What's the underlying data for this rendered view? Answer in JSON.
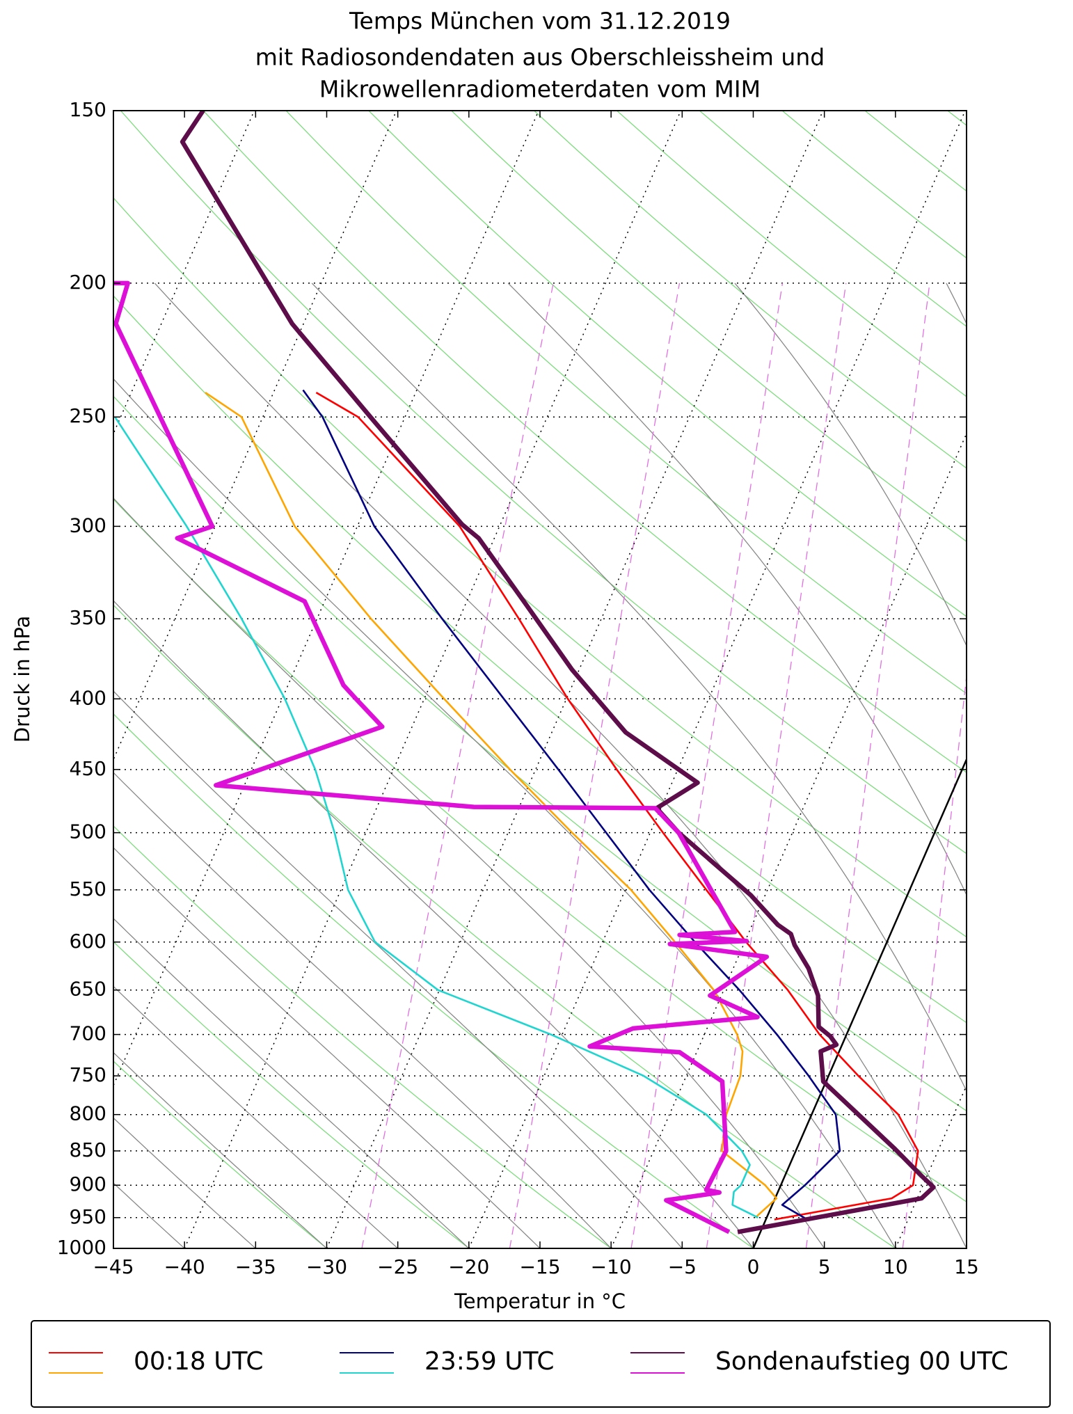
{
  "chart_data": {
    "type": "skewt",
    "title": [
      "Temps München vom 31.12.2019",
      "mit Radiosondendaten aus Oberschleissheim und",
      "Mikrowellenradiometerdaten vom MIM"
    ],
    "xlabel": "Temperatur in °C",
    "ylabel": "Druck in hPa",
    "xlim": [
      -45,
      15
    ],
    "ylim": [
      1000,
      150
    ],
    "log_y": true,
    "grid": true,
    "xticks": [
      {
        "value": -45,
        "label": "−45"
      },
      {
        "value": -40,
        "label": "−40"
      },
      {
        "value": -35,
        "label": "−35"
      },
      {
        "value": -30,
        "label": "−30"
      },
      {
        "value": -25,
        "label": "−25"
      },
      {
        "value": -20,
        "label": "−20"
      },
      {
        "value": -15,
        "label": "−15"
      },
      {
        "value": -10,
        "label": "−10"
      },
      {
        "value": -5,
        "label": "−5"
      },
      0,
      5,
      10,
      15
    ],
    "yticks": [
      150,
      200,
      250,
      300,
      350,
      400,
      450,
      500,
      550,
      600,
      650,
      700,
      750,
      800,
      850,
      900,
      950,
      1000
    ],
    "series": [
      {
        "name": "00:18 UTC",
        "linewidth": 2,
        "temperature": {
          "color": "#ff0000",
          "p": [
            953,
            920,
            900,
            850,
            800,
            750,
            700,
            650,
            600,
            550,
            500,
            450,
            400,
            350,
            300,
            250,
            240
          ],
          "t": [
            0.6,
            8.2,
            9.3,
            8.6,
            6.1,
            2.1,
            -1.9,
            -5.5,
            -9.9,
            -14.3,
            -19.1,
            -24.3,
            -29.9,
            -35.8,
            -42.8,
            -53.3,
            -57.0
          ]
        },
        "dewpoint": {
          "color": "#ffa500",
          "p": [
            950,
            920,
            900,
            850,
            800,
            750,
            720,
            700,
            650,
            600,
            550,
            500,
            450,
            400,
            350,
            300,
            250,
            240
          ],
          "t": [
            -0.8,
            0.1,
            -1.1,
            -5.2,
            -6.0,
            -6.2,
            -6.8,
            -7.7,
            -10.7,
            -14.9,
            -19.6,
            -25.5,
            -31.8,
            -38.6,
            -46.2,
            -54.4,
            -61.5,
            -64.8
          ]
        }
      },
      {
        "name": "23:59 UTC",
        "linewidth": 2,
        "temperature": {
          "color": "#000080",
          "p": [
            955,
            930,
            900,
            850,
            800,
            750,
            700,
            650,
            600,
            550,
            500,
            450,
            400,
            350,
            300,
            250,
            239
          ],
          "t": [
            3.1,
            0.7,
            1.7,
            3.1,
            1.7,
            -1.4,
            -4.9,
            -8.9,
            -13.5,
            -18.3,
            -23.1,
            -28.4,
            -34.4,
            -41.2,
            -48.8,
            -55.8,
            -58.0
          ]
        },
        "dewpoint": {
          "color": "#20d5d0",
          "p": [
            950,
            930,
            910,
            900,
            870,
            850,
            800,
            750,
            700,
            650,
            600,
            550,
            500,
            450,
            400,
            350,
            300,
            250
          ],
          "t": [
            -0.6,
            -2.8,
            -3.1,
            -2.8,
            -2.8,
            -3.8,
            -7.4,
            -13.0,
            -20.8,
            -30.1,
            -36.0,
            -39.5,
            -42.2,
            -45.5,
            -49.8,
            -55.3,
            -62.0,
            -70.4
          ]
        }
      },
      {
        "name": "Sondenaufstieg 00 UTC",
        "linewidth": 5,
        "temperature": {
          "color": "#5c0d4a",
          "p": [
            973,
            920,
            903,
            886,
            847,
            757,
            720,
            712,
            702,
            691,
            656,
            627,
            603,
            592,
            583,
            555,
            500,
            480,
            460,
            423,
            381,
            342,
            306,
            299,
            252,
            214,
            158,
            150
          ],
          "t": [
            -1.6,
            10.3,
            10.8,
            9.6,
            6.9,
            -0.2,
            -1.3,
            -0.4,
            -1.1,
            -2.2,
            -3.2,
            -4.7,
            -6.4,
            -7.0,
            -8.2,
            -11.0,
            -18.0,
            -20.3,
            -18.2,
            -24.8,
            -30.5,
            -35.7,
            -41.1,
            -42.7,
            -52.0,
            -60.8,
            -74.1,
            -73.6
          ]
        },
        "dewpoint": {
          "color": "#dd10d8",
          "p": [
            973,
            923,
            911,
            907,
            850,
            757,
            721,
            714,
            693,
            680,
            656,
            615,
            602,
            599,
            593,
            590,
            500,
            480,
            479,
            462,
            419,
            400,
            391,
            340,
            306,
            300,
            214,
            200,
            200
          ],
          "t": [
            -2.2,
            -7.6,
            -4.1,
            -5.1,
            -4.9,
            -7.3,
            -11.2,
            -17.7,
            -15.2,
            -6.8,
            -10.8,
            -8.0,
            -15.2,
            -9.9,
            -14.8,
            -11.0,
            -18.0,
            -20.4,
            -33.2,
            -52.0,
            -42.1,
            -44.8,
            -46.1,
            -51.4,
            -62.3,
            -60.2,
            -73.2,
            -73.6,
            -74.6
          ]
        }
      }
    ]
  }
}
